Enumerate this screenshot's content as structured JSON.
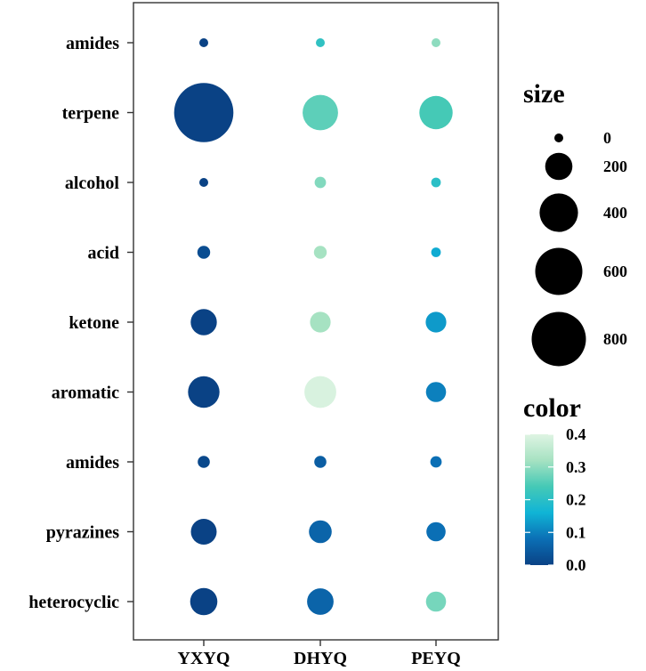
{
  "chart_data": {
    "type": "bubble",
    "title": "",
    "xlabel": "",
    "ylabel": "",
    "x_categories": [
      "YXYQ",
      "DHYQ",
      "PEYQ"
    ],
    "y_categories": [
      "amides",
      "terpene",
      "alcohol",
      "acid",
      "ketone",
      "aromatic",
      "amides",
      "pyrazines",
      "heterocyclic"
    ],
    "points": [
      {
        "row": 0,
        "col": 0,
        "size": 15,
        "color": 0.0
      },
      {
        "row": 0,
        "col": 1,
        "size": 15,
        "color": 0.21
      },
      {
        "row": 0,
        "col": 2,
        "size": 15,
        "color": 0.3
      },
      {
        "row": 1,
        "col": 0,
        "size": 950,
        "color": 0.0
      },
      {
        "row": 1,
        "col": 1,
        "size": 340,
        "color": 0.26
      },
      {
        "row": 1,
        "col": 2,
        "size": 300,
        "color": 0.24
      },
      {
        "row": 2,
        "col": 0,
        "size": 15,
        "color": 0.0
      },
      {
        "row": 2,
        "col": 1,
        "size": 35,
        "color": 0.29
      },
      {
        "row": 2,
        "col": 2,
        "size": 25,
        "color": 0.2
      },
      {
        "row": 3,
        "col": 0,
        "size": 45,
        "color": 0.02
      },
      {
        "row": 3,
        "col": 1,
        "size": 45,
        "color": 0.32
      },
      {
        "row": 3,
        "col": 2,
        "size": 25,
        "color": 0.15
      },
      {
        "row": 4,
        "col": 0,
        "size": 185,
        "color": 0.0
      },
      {
        "row": 4,
        "col": 1,
        "size": 115,
        "color": 0.32
      },
      {
        "row": 4,
        "col": 2,
        "size": 115,
        "color": 0.13
      },
      {
        "row": 5,
        "col": 0,
        "size": 270,
        "color": 0.0
      },
      {
        "row": 5,
        "col": 1,
        "size": 275,
        "color": 0.39
      },
      {
        "row": 5,
        "col": 2,
        "size": 110,
        "color": 0.1
      },
      {
        "row": 6,
        "col": 0,
        "size": 40,
        "color": 0.01
      },
      {
        "row": 6,
        "col": 1,
        "size": 40,
        "color": 0.05
      },
      {
        "row": 6,
        "col": 2,
        "size": 35,
        "color": 0.08
      },
      {
        "row": 7,
        "col": 0,
        "size": 180,
        "color": 0.0
      },
      {
        "row": 7,
        "col": 1,
        "size": 140,
        "color": 0.06
      },
      {
        "row": 7,
        "col": 2,
        "size": 100,
        "color": 0.08
      },
      {
        "row": 8,
        "col": 0,
        "size": 200,
        "color": 0.0
      },
      {
        "row": 8,
        "col": 1,
        "size": 190,
        "color": 0.06
      },
      {
        "row": 8,
        "col": 2,
        "size": 110,
        "color": 0.28
      }
    ],
    "size_legend": {
      "title": "size",
      "breaks": [
        0,
        200,
        400,
        600,
        800
      ]
    },
    "color_legend": {
      "title": "color",
      "breaks": [
        0.0,
        0.1,
        0.2,
        0.3,
        0.4
      ],
      "tick_labels": [
        "0.0",
        "0.1",
        "0.2",
        "0.3",
        "0.4"
      ],
      "range": [
        0.0,
        0.4
      ],
      "gradient": [
        "#0a4285",
        "#0b6fb5",
        "#10b4d6",
        "#45c9b6",
        "#a6e2c2",
        "#dff4e3"
      ]
    }
  }
}
